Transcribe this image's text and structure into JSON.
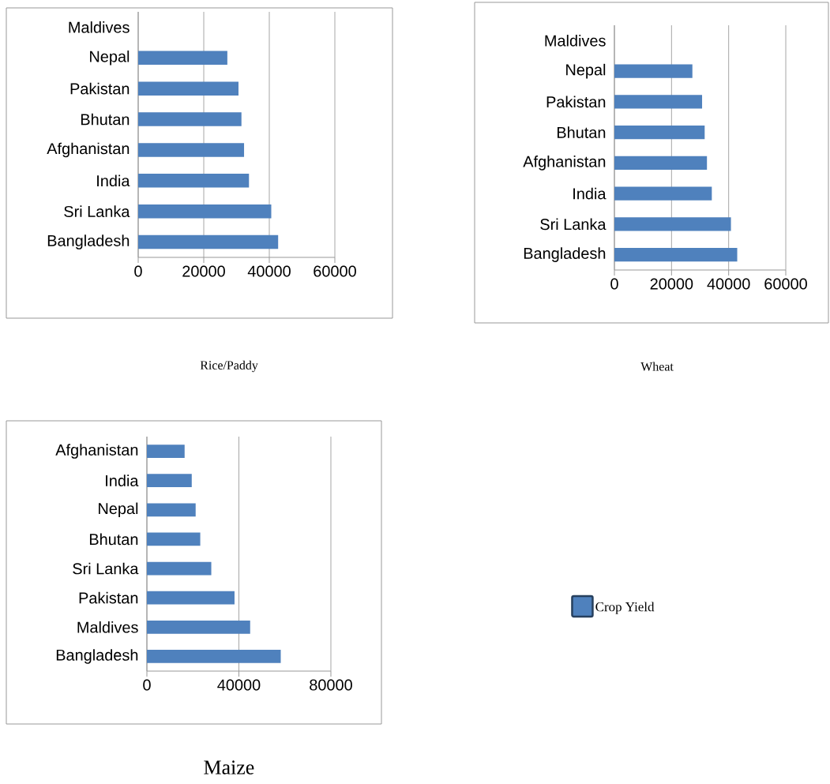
{
  "chart_data": [
    {
      "type": "bar",
      "orientation": "horizontal",
      "title": "Rice/Paddy",
      "categories": [
        "Maldives",
        "Nepal",
        "Pakistan",
        "Bhutan",
        "Afghanistan",
        "India",
        "Sri Lanka",
        "Bangladesh"
      ],
      "values": [
        null,
        27200,
        30600,
        31500,
        32300,
        33800,
        40600,
        42700
      ],
      "color": "#4f81bd",
      "xlim": [
        0,
        60000
      ],
      "xticks": [
        0,
        20000,
        40000,
        60000
      ],
      "grid": "x"
    },
    {
      "type": "bar",
      "orientation": "horizontal",
      "title": "Wheat",
      "categories": [
        "Maldives",
        "Nepal",
        "Pakistan",
        "Bhutan",
        "Afghanistan",
        "India",
        "Sri Lanka",
        "Bangladesh"
      ],
      "values": [
        null,
        27300,
        30700,
        31600,
        32400,
        34100,
        40800,
        43000
      ],
      "color": "#4f81bd",
      "xlim": [
        0,
        60000
      ],
      "xticks": [
        0,
        20000,
        40000,
        60000
      ],
      "grid": "x"
    },
    {
      "type": "bar",
      "orientation": "horizontal",
      "title": "Maize",
      "categories": [
        "Afghanistan",
        "India",
        "Nepal",
        "Bhutan",
        "Sri Lanka",
        "Pakistan",
        "Maldives",
        "Bangladesh"
      ],
      "series": [
        {
          "name": "Crop Yield",
          "color": "#4f81bd",
          "values": [
            16400,
            19500,
            21200,
            23200,
            28000,
            38100,
            44900,
            58200
          ]
        }
      ],
      "xlim": [
        0,
        80000
      ],
      "xticks": [
        0,
        40000,
        80000
      ],
      "grid": "x",
      "legend": "right"
    }
  ]
}
